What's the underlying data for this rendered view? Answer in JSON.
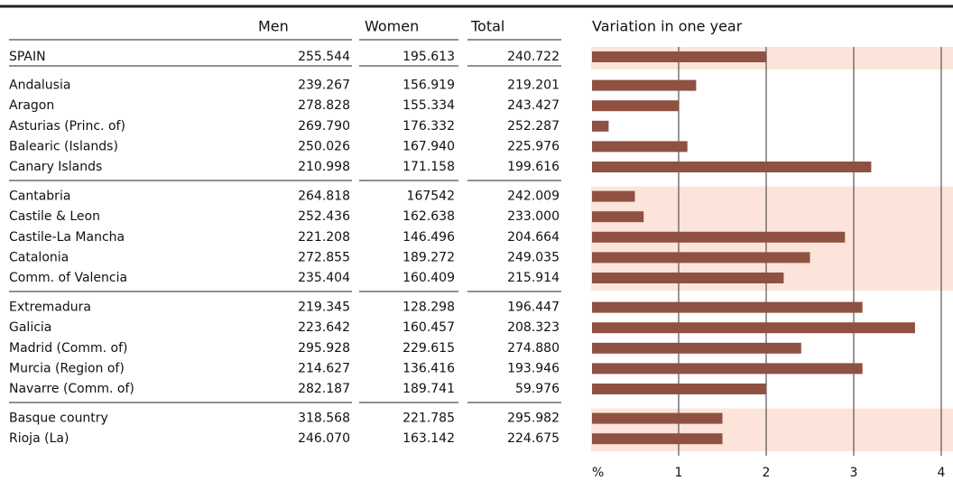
{
  "table": {
    "columns": [
      "Men",
      "Women",
      "Total"
    ],
    "groups": [
      {
        "rows": [
          {
            "name": "SPAIN",
            "values": [
              "255.544",
              "195.613",
              "240.722"
            ]
          }
        ]
      },
      {
        "rows": [
          {
            "name": "Andalusia",
            "values": [
              "239.267",
              "156.919",
              "219.201"
            ]
          },
          {
            "name": "Aragon",
            "values": [
              "278.828",
              "155.334",
              "243.427"
            ]
          },
          {
            "name": "Asturias (Princ. of)",
            "values": [
              "269.790",
              "176.332",
              "252.287"
            ]
          },
          {
            "name": "Balearic (Islands)",
            "values": [
              "250.026",
              "167.940",
              "225.976"
            ]
          },
          {
            "name": "Canary Islands",
            "values": [
              "210.998",
              "171.158",
              "199.616"
            ]
          }
        ]
      },
      {
        "rows": [
          {
            "name": "Cantabria",
            "values": [
              "264.818",
              "167542",
              "242.009"
            ]
          },
          {
            "name": "Castile & Leon",
            "values": [
              "252.436",
              "162.638",
              "233.000"
            ]
          },
          {
            "name": "Castile-La Mancha",
            "values": [
              "221.208",
              "146.496",
              "204.664"
            ]
          },
          {
            "name": "Catalonia",
            "values": [
              "272.855",
              "189.272",
              "249.035"
            ]
          },
          {
            "name": "Comm. of Valencia",
            "values": [
              "235.404",
              "160.409",
              "215.914"
            ]
          }
        ]
      },
      {
        "rows": [
          {
            "name": "Extremadura",
            "values": [
              "219.345",
              "128.298",
              "196.447"
            ]
          },
          {
            "name": "Galicia",
            "values": [
              "223.642",
              "160.457",
              "208.323"
            ]
          },
          {
            "name": "Madrid (Comm. of)",
            "values": [
              "295.928",
              "229.615",
              "274.880"
            ]
          },
          {
            "name": "Murcia (Region of)",
            "values": [
              "214.627",
              "136.416",
              "193.946"
            ]
          },
          {
            "name": "Navarre (Comm. of)",
            "values": [
              "282.187",
              "189.741",
              "59.976"
            ]
          }
        ]
      },
      {
        "rows": [
          {
            "name": "Basque country",
            "values": [
              "318.568",
              "221.785",
              "295.982"
            ]
          },
          {
            "name": "Rioja (La)",
            "values": [
              "246.070",
              "163.142",
              "224.675"
            ]
          }
        ]
      }
    ]
  },
  "chart_data": {
    "type": "bar",
    "title": "Variation in one year",
    "x_label": "%",
    "values": [
      2.0,
      1.2,
      1.0,
      0.2,
      1.1,
      3.2,
      0.5,
      0.6,
      2.9,
      2.5,
      2.2,
      3.1,
      3.7,
      2.4,
      3.1,
      2.0,
      1.5,
      1.5
    ],
    "color": "#8f5142",
    "xlim": [
      0,
      4
    ],
    "xticks": [
      1,
      2,
      3,
      4
    ],
    "grid": true
  }
}
